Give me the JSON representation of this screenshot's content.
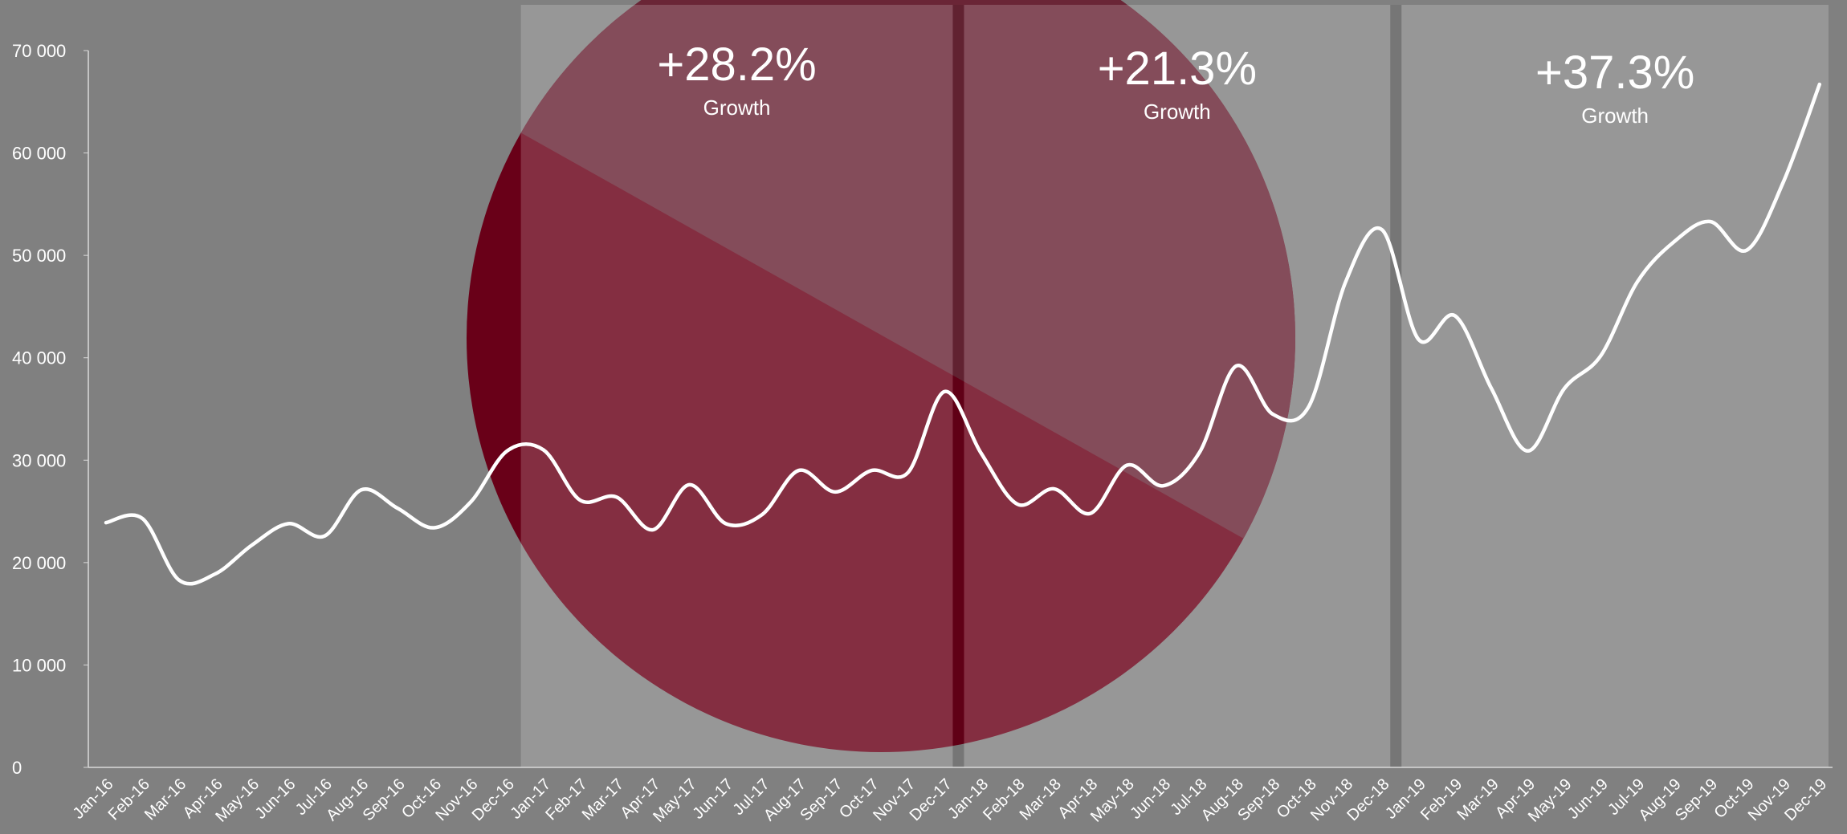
{
  "chart_data": {
    "type": "line",
    "categories": [
      "Jan-16",
      "Feb-16",
      "Mar-16",
      "Apr-16",
      "May-16",
      "Jun-16",
      "Jul-16",
      "Aug-16",
      "Sep-16",
      "Oct-16",
      "Nov-16",
      "Dec-16",
      "Jan-17",
      "Feb-17",
      "Mar-17",
      "Apr-17",
      "May-17",
      "Jun-17",
      "Jul-17",
      "Aug-17",
      "Sep-17",
      "Oct-17",
      "Nov-17",
      "Dec-17",
      "Jan-18",
      "Feb-18",
      "Mar-18",
      "Apr-18",
      "May-18",
      "Jun-18",
      "Jul-18",
      "Aug-18",
      "Sep-18",
      "Oct-18",
      "Nov-18",
      "Dec-18",
      "Jan-19",
      "Feb-19",
      "Mar-19",
      "Apr-19",
      "May-19",
      "Jun-19",
      "Jul-19",
      "Aug-19",
      "Sep-19",
      "Oct-19",
      "Nov-19",
      "Dec-19"
    ],
    "values": [
      23900,
      24300,
      18300,
      18900,
      21700,
      23800,
      22600,
      27100,
      25300,
      23400,
      25900,
      30900,
      31000,
      26100,
      26400,
      23200,
      27600,
      23800,
      24700,
      29000,
      26900,
      29000,
      28800,
      36700,
      30700,
      25700,
      27200,
      24800,
      29500,
      27500,
      30800,
      39200,
      34500,
      35300,
      47400,
      52500,
      41800,
      44100,
      37000,
      30900,
      37000,
      40200,
      47400,
      51300,
      53300,
      50500,
      57100,
      66700
    ],
    "color": "#ffffff",
    "ylim": [
      0,
      70000
    ],
    "yticks": [
      0,
      {
        "value": 10000,
        "label": "10 000"
      },
      {
        "value": 20000,
        "label": "20 000"
      },
      {
        "value": 30000,
        "label": "30 000"
      },
      {
        "value": 40000,
        "label": "40 000"
      },
      {
        "value": 50000,
        "label": "50 000"
      },
      {
        "value": 60000,
        "label": "60 000"
      },
      {
        "value": 70000,
        "label": "70 000"
      }
    ],
    "annotations": [
      {
        "text": "+28.2%",
        "label": "Growth"
      },
      {
        "text": "+21.3%",
        "label": "Growth"
      },
      {
        "text": "+37.3%",
        "label": "Growth"
      }
    ]
  }
}
